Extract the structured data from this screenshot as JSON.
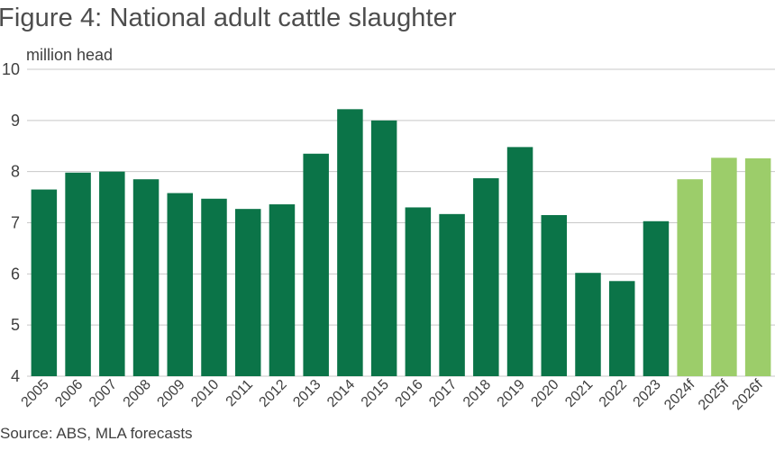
{
  "chart_data": {
    "type": "bar",
    "title": "Figure 4: National adult cattle slaughter",
    "ylabel": "million head",
    "source": "Source: ABS, MLA forecasts",
    "ylim": [
      4,
      10
    ],
    "yticks": [
      4,
      5,
      6,
      7,
      8,
      9,
      10
    ],
    "grid": true,
    "categories": [
      "2005",
      "2006",
      "2007",
      "2008",
      "2009",
      "2010",
      "2011",
      "2012",
      "2013",
      "2014",
      "2015",
      "2016",
      "2017",
      "2018",
      "2019",
      "2020",
      "2021",
      "2022",
      "2023",
      "2024f",
      "2025f",
      "2026f"
    ],
    "values": [
      7.65,
      7.98,
      8.0,
      7.85,
      7.58,
      7.47,
      7.27,
      7.36,
      8.35,
      9.22,
      9.0,
      7.3,
      7.17,
      7.87,
      8.48,
      7.15,
      6.02,
      5.86,
      7.03,
      7.85,
      8.27,
      8.26
    ],
    "colors": {
      "actual": "#0b7448",
      "forecast": "#9ccd6a",
      "grid": "#c8c8c8",
      "text": "#404040"
    }
  }
}
